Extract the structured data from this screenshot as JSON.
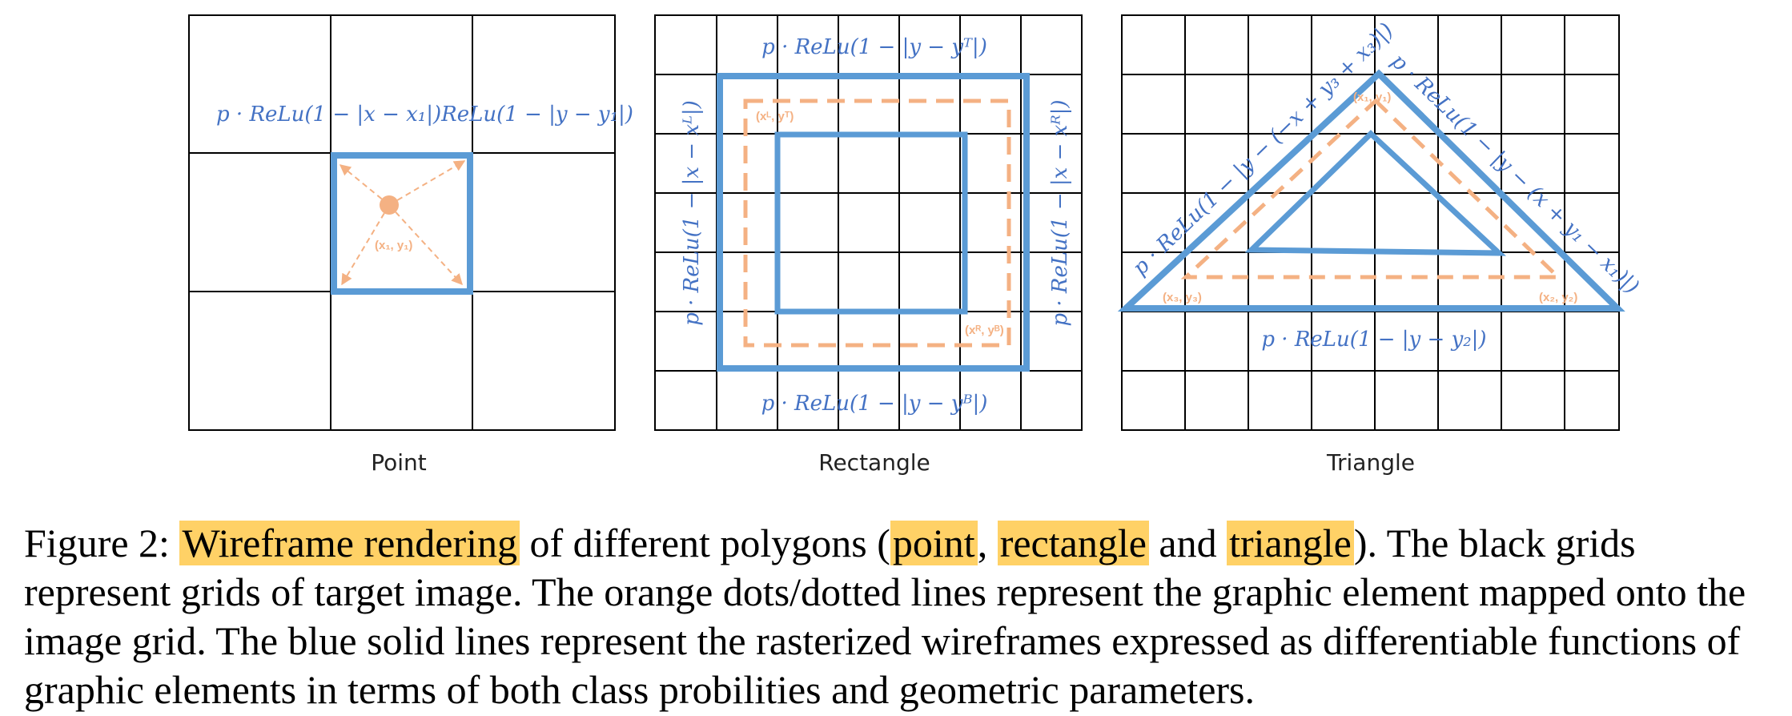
{
  "panels": {
    "point": {
      "label": "Point",
      "formula": "p · ReLu(1 − |x − x₁|)ReLu(1 − |y − y₁|)",
      "coord": "(x₁, y₁)"
    },
    "rectangle": {
      "label": "Rectangle",
      "formula_top": "p · ReLu(1 − |y − yᵀ|)",
      "formula_bottom": "p · ReLu(1 − |y − yᴮ|)",
      "formula_left": "p · ReLu(1 − |x − xᴸ|)",
      "formula_right": "p · ReLu(1 − |x − xᴿ|)",
      "coord_tl": "(xᴸ, yᵀ)",
      "coord_br": "(xᴿ, yᴮ)"
    },
    "triangle": {
      "label": "Triangle",
      "formula_left": "p · ReLu(1 − |y − (−x + y₃ + x₃)|)",
      "formula_right": "p · ReLu(1 − |y − (x + y₁ − x₁)|)",
      "formula_bottom": "p · ReLu(1 − |y − y₂|)",
      "coord_top": "(x₁, y₁)",
      "coord_left": "(x₃, y₃)",
      "coord_right": "(x₂, y₂)"
    }
  },
  "caption": {
    "prefix": "Figure 2: ",
    "h1": "Wireframe rendering",
    "t1": " of different polygons (",
    "h2": "point",
    "t2": ", ",
    "h3": "rectangle",
    "t3": " and ",
    "h4": "triangle",
    "t4": "). The black grids represent grids of target image. The orange dots/dotted lines represent the graphic element mapped onto the image grid. The blue solid lines represent the rasterized wireframes expressed as differentiable functions of graphic elements in terms of both class probilities and geometric parameters."
  },
  "colors": {
    "grid": "#000000",
    "wireframe_blue": "#5B9BD5",
    "element_orange": "#F4B183",
    "formula_blue": "#4472C4",
    "highlight": "#FFD166"
  }
}
